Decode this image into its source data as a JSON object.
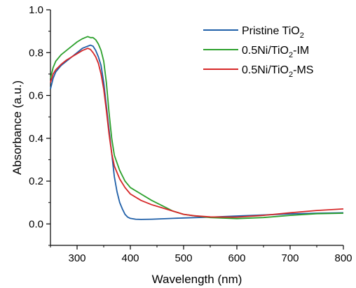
{
  "chart_data": {
    "type": "line",
    "xlabel": "Wavelength (nm)",
    "ylabel": "Absorbance (a.u.)",
    "xlim": [
      250,
      800
    ],
    "ylim": [
      -0.1,
      1.0
    ],
    "xticks": [
      "300",
      "400",
      "500",
      "600",
      "700",
      "800"
    ],
    "yticks": [
      "0.0",
      "0.2",
      "0.4",
      "0.6",
      "0.8",
      "1.0"
    ],
    "grid": false,
    "legend_position": "top-right",
    "series": [
      {
        "name": "Pristine TiO₂",
        "legend_main": "Pristine TiO",
        "legend_sub": "2",
        "legend_tail": "",
        "color": "#1f5fa8",
        "x": [
          250,
          255,
          260,
          270,
          280,
          290,
          300,
          310,
          320,
          325,
          330,
          335,
          340,
          345,
          350,
          355,
          360,
          365,
          370,
          375,
          380,
          385,
          390,
          395,
          400,
          410,
          420,
          440,
          460,
          480,
          500,
          550,
          600,
          650,
          700,
          750,
          800
        ],
        "y": [
          0.63,
          0.68,
          0.71,
          0.74,
          0.76,
          0.78,
          0.8,
          0.82,
          0.83,
          0.835,
          0.83,
          0.81,
          0.78,
          0.74,
          0.66,
          0.55,
          0.44,
          0.33,
          0.22,
          0.15,
          0.1,
          0.07,
          0.045,
          0.032,
          0.026,
          0.022,
          0.021,
          0.022,
          0.024,
          0.026,
          0.028,
          0.032,
          0.037,
          0.042,
          0.047,
          0.05,
          0.052
        ]
      },
      {
        "name": "0.5Ni/TiO₂-IM",
        "legend_main": "0.5Ni/TiO",
        "legend_sub": "2",
        "legend_tail": "-IM",
        "color": "#2ca02c",
        "x": [
          250,
          255,
          260,
          270,
          280,
          290,
          300,
          310,
          315,
          320,
          325,
          330,
          335,
          340,
          345,
          350,
          355,
          360,
          365,
          370,
          380,
          390,
          400,
          420,
          440,
          460,
          480,
          500,
          520,
          550,
          600,
          650,
          700,
          750,
          800
        ],
        "y": [
          0.68,
          0.73,
          0.76,
          0.79,
          0.81,
          0.83,
          0.85,
          0.865,
          0.87,
          0.875,
          0.87,
          0.87,
          0.86,
          0.84,
          0.81,
          0.76,
          0.66,
          0.52,
          0.4,
          0.32,
          0.25,
          0.2,
          0.17,
          0.14,
          0.11,
          0.085,
          0.06,
          0.045,
          0.038,
          0.03,
          0.025,
          0.03,
          0.04,
          0.048,
          0.05
        ]
      },
      {
        "name": "0.5Ni/TiO₂-MS",
        "legend_main": "0.5Ni/TiO",
        "legend_sub": "2",
        "legend_tail": "-MS",
        "color": "#d62728",
        "x": [
          250,
          255,
          260,
          270,
          280,
          290,
          300,
          310,
          315,
          320,
          325,
          330,
          335,
          340,
          345,
          350,
          355,
          360,
          365,
          370,
          380,
          390,
          400,
          420,
          440,
          460,
          480,
          500,
          520,
          550,
          600,
          650,
          700,
          750,
          800
        ],
        "y": [
          0.66,
          0.7,
          0.72,
          0.745,
          0.765,
          0.78,
          0.795,
          0.81,
          0.815,
          0.82,
          0.815,
          0.8,
          0.78,
          0.75,
          0.7,
          0.63,
          0.53,
          0.42,
          0.33,
          0.27,
          0.21,
          0.17,
          0.14,
          0.11,
          0.09,
          0.075,
          0.06,
          0.045,
          0.038,
          0.033,
          0.032,
          0.04,
          0.052,
          0.063,
          0.07
        ]
      }
    ]
  }
}
